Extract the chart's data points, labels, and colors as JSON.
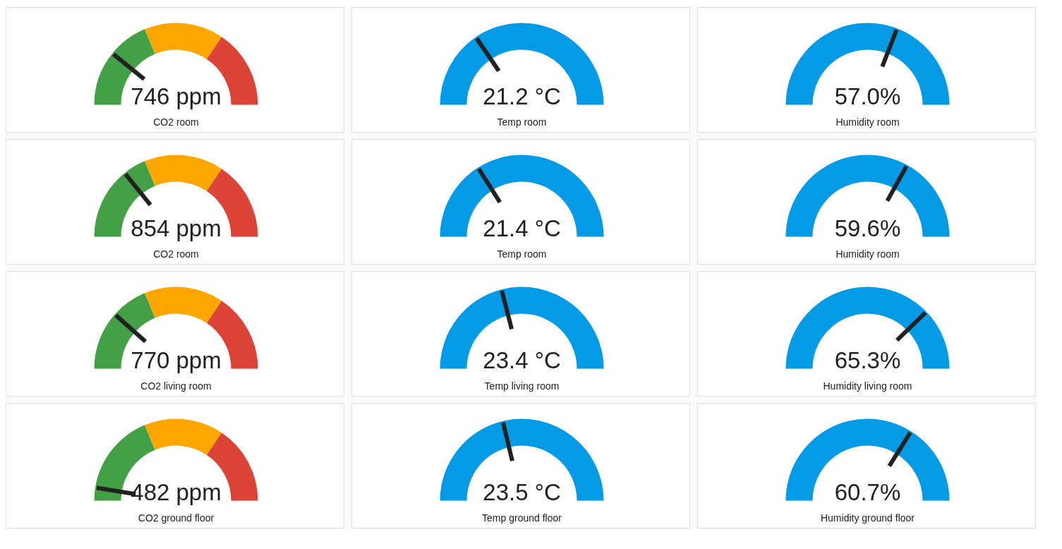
{
  "chart_data": [
    {
      "type": "donut",
      "title": "CO2 room",
      "annotations": [
        "746 ppm"
      ],
      "categories": [
        null,
        null,
        null,
        null
      ],
      "values": [
        21.6,
        15.9,
        31.3,
        31.2
      ],
      "colors": [
        "#43a047",
        "#43a047",
        "#ffa600",
        "#db4437"
      ]
    },
    {
      "type": "donut",
      "title": "Temp room",
      "annotations": [
        "21.2 °C"
      ],
      "categories": [
        null,
        null
      ],
      "values": [
        31,
        69
      ],
      "colors": [
        "#039be5",
        "#039be5"
      ]
    },
    {
      "type": "donut",
      "title": "Humidity room",
      "annotations": [
        "57.0%"
      ],
      "categories": [
        null,
        null
      ],
      "values": [
        61.7,
        38.3
      ],
      "colors": [
        "#039be5",
        "#039be5"
      ]
    },
    {
      "type": "donut",
      "title": "CO2 room",
      "annotations": [
        "854 ppm"
      ],
      "categories": [
        null,
        null,
        null,
        null
      ],
      "values": [
        28.4,
        9.1,
        31.3,
        31.2
      ],
      "colors": [
        "#43a047",
        "#43a047",
        "#ffa600",
        "#db4437"
      ]
    },
    {
      "type": "donut",
      "title": "Temp room",
      "annotations": [
        "21.4 °C"
      ],
      "categories": [
        null,
        null
      ],
      "values": [
        32,
        68
      ],
      "colors": [
        "#039be5",
        "#039be5"
      ]
    },
    {
      "type": "donut",
      "title": "Humidity room",
      "annotations": [
        "59.6%"
      ],
      "categories": [
        null,
        null
      ],
      "values": [
        66,
        34
      ],
      "colors": [
        "#039be5",
        "#039be5"
      ]
    },
    {
      "type": "donut",
      "title": "CO2 living room",
      "annotations": [
        "770 ppm"
      ],
      "categories": [
        null,
        null,
        null,
        null
      ],
      "values": [
        23.1,
        14.4,
        31.3,
        31.2
      ],
      "colors": [
        "#43a047",
        "#43a047",
        "#ffa600",
        "#db4437"
      ]
    },
    {
      "type": "donut",
      "title": "Temp living room",
      "annotations": [
        "23.4 °C"
      ],
      "categories": [
        null,
        null
      ],
      "values": [
        42,
        58
      ],
      "colors": [
        "#039be5",
        "#039be5"
      ]
    },
    {
      "type": "donut",
      "title": "Humidity living room",
      "annotations": [
        "65.3%"
      ],
      "categories": [
        null,
        null
      ],
      "values": [
        75.5,
        24.5
      ],
      "colors": [
        "#039be5",
        "#039be5"
      ]
    },
    {
      "type": "donut",
      "title": "CO2 ground floor",
      "annotations": [
        "482 ppm"
      ],
      "categories": [
        null,
        null,
        null,
        null
      ],
      "values": [
        5.1,
        32.4,
        31.3,
        31.2
      ],
      "colors": [
        "#43a047",
        "#43a047",
        "#ffa600",
        "#db4437"
      ]
    },
    {
      "type": "donut",
      "title": "Temp ground floor",
      "annotations": [
        "23.5 °C"
      ],
      "categories": [
        null,
        null
      ],
      "values": [
        42.5,
        57.5
      ],
      "colors": [
        "#039be5",
        "#039be5"
      ]
    },
    {
      "type": "donut",
      "title": "Humidity ground floor",
      "annotations": [
        "60.7%"
      ],
      "categories": [
        null,
        null
      ],
      "values": [
        67.8,
        32.2
      ],
      "colors": [
        "#039be5",
        "#039be5"
      ]
    }
  ]
}
